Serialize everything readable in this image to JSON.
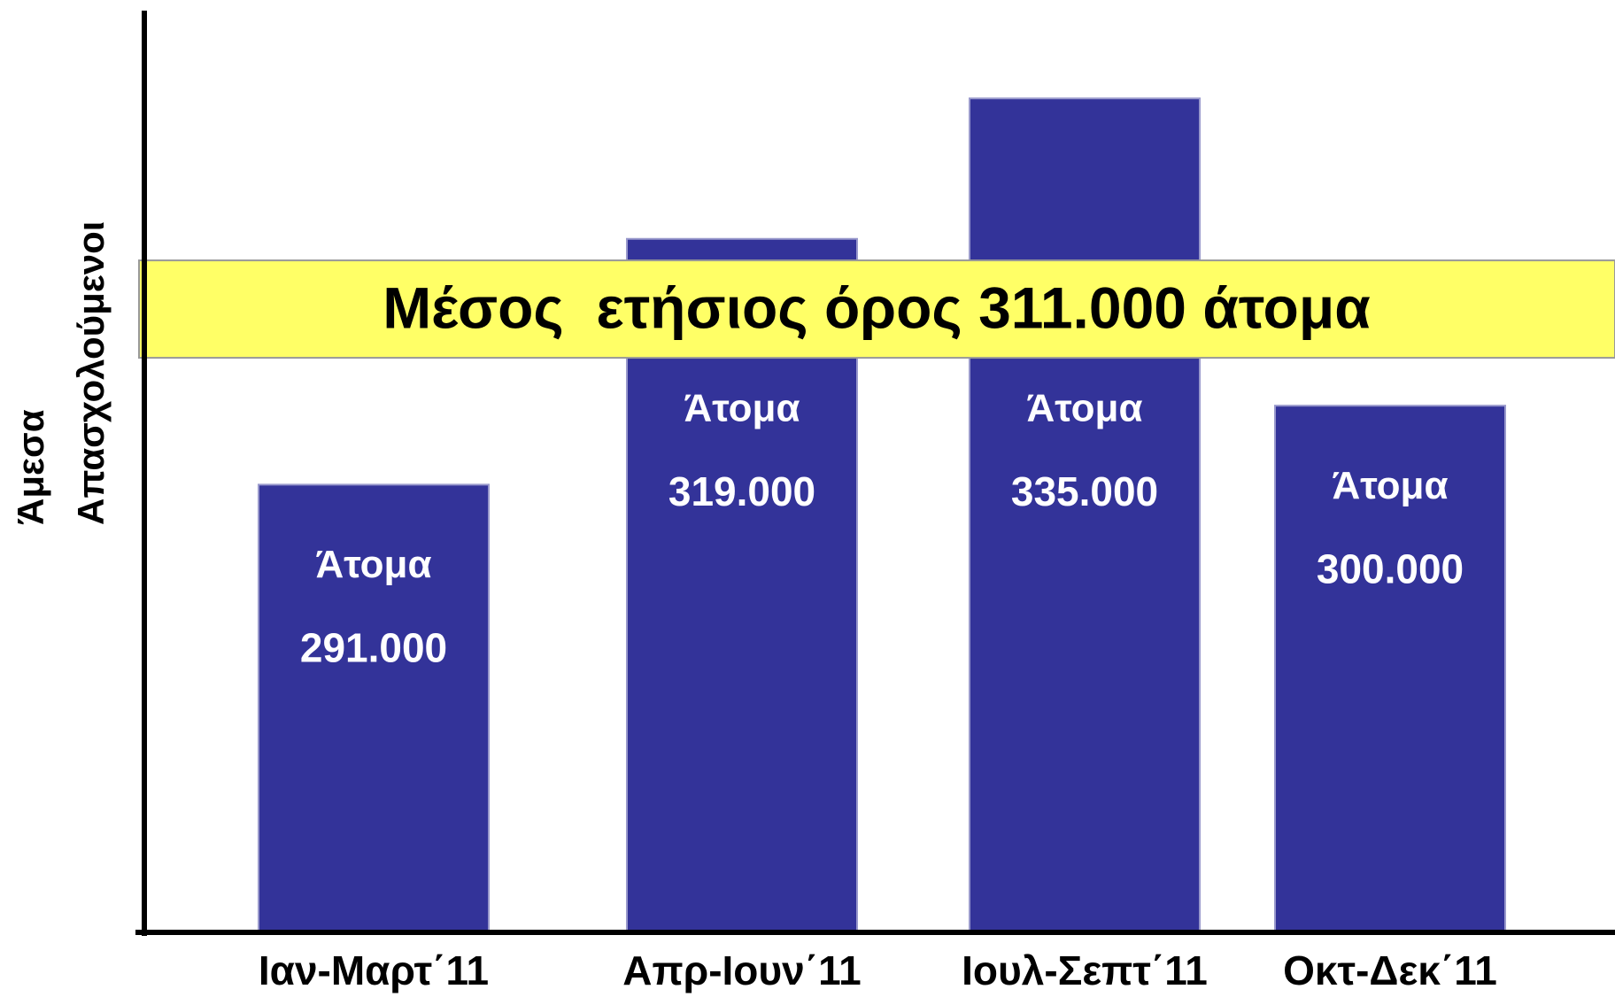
{
  "chart_data": {
    "type": "bar",
    "ylabel": [
      "Άμεσα",
      "Απασχολούμενοι"
    ],
    "categories": [
      "Ιαν-Μαρτ΄11",
      "Απρ-Ιουν΄11",
      "Ιουλ-Σεπτ΄11",
      "Οκτ-Δεκ΄11"
    ],
    "values": [
      291000,
      319000,
      335000,
      300000
    ],
    "value_labels": [
      "291.000",
      "319.000",
      "335.000",
      "300.000"
    ],
    "bar_unit": "Άτομα",
    "color": "#333399",
    "ylim": [
      240000,
      345000
    ],
    "average": 311000,
    "annotation": "Μέσος  ετήσιος όρος 311.000 άτομα",
    "annotation_color": "#ffff66"
  }
}
